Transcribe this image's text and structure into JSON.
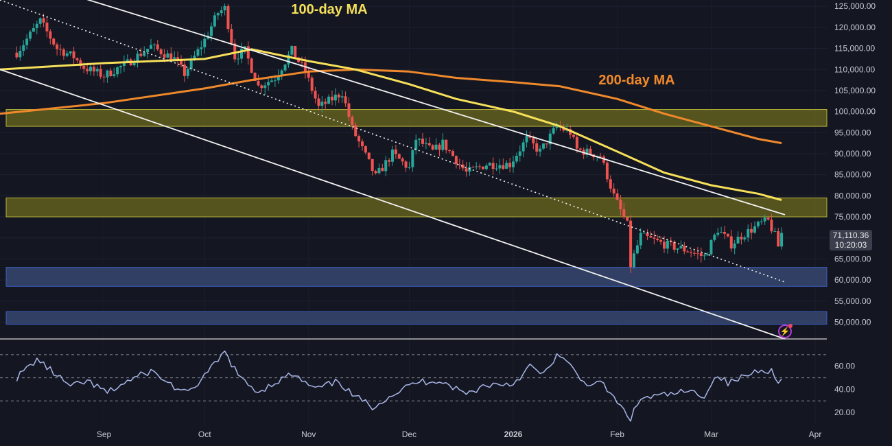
{
  "chart_data": {
    "type": "candlestick",
    "price_axis": {
      "ticks": [
        "125,000.00",
        "120,000.00",
        "115,000.00",
        "110,000.00",
        "105,000.00",
        "100,000.00",
        "95,000.00",
        "90,000.00",
        "85,000.00",
        "80,000.00",
        "75,000.00",
        "70,000.00",
        "65,000.00",
        "60,000.00",
        "55,000.00",
        "50,000.00"
      ],
      "range": [
        46000,
        126500
      ]
    },
    "time_axis": {
      "ticks": [
        "Sep",
        "Oct",
        "Nov",
        "Dec",
        "2026",
        "Feb",
        "Mar",
        "Apr"
      ],
      "tick_dates": [
        "2025-09-01",
        "2025-10-01",
        "2025-11-01",
        "2025-12-01",
        "2026-01-01",
        "2026-02-01",
        "2026-03-01",
        "2026-04-01"
      ]
    },
    "last_price": "71,110.36",
    "countdown": "10:20:03",
    "annotations": {
      "ma100_label": "100-day MA",
      "ma200_label": "200-day MA"
    },
    "price_anchors": [
      [
        "2025-08-06",
        114000
      ],
      [
        "2025-08-13",
        121500
      ],
      [
        "2025-08-18",
        115000
      ],
      [
        "2025-08-23",
        113000
      ],
      [
        "2025-08-26",
        110500
      ],
      [
        "2025-09-01",
        108500
      ],
      [
        "2025-09-08",
        111500
      ],
      [
        "2025-09-15",
        115500
      ],
      [
        "2025-09-22",
        112500
      ],
      [
        "2025-09-25",
        109000
      ],
      [
        "2025-10-01",
        117000
      ],
      [
        "2025-10-05",
        123500
      ],
      [
        "2025-10-07",
        124500
      ],
      [
        "2025-10-10",
        113000
      ],
      [
        "2025-10-13",
        114500
      ],
      [
        "2025-10-17",
        106000
      ],
      [
        "2025-10-22",
        108000
      ],
      [
        "2025-10-27",
        114500
      ],
      [
        "2025-10-31",
        109500
      ],
      [
        "2025-11-04",
        101000
      ],
      [
        "2025-11-11",
        104500
      ],
      [
        "2025-11-14",
        96000
      ],
      [
        "2025-11-21",
        84500
      ],
      [
        "2025-11-26",
        90000
      ],
      [
        "2025-12-01",
        86500
      ],
      [
        "2025-12-03",
        93500
      ],
      [
        "2025-12-08",
        90500
      ],
      [
        "2025-12-11",
        92500
      ],
      [
        "2025-12-18",
        85500
      ],
      [
        "2025-12-24",
        87500
      ],
      [
        "2025-12-31",
        87500
      ],
      [
        "2026-01-05",
        93500
      ],
      [
        "2026-01-09",
        90500
      ],
      [
        "2026-01-14",
        96500
      ],
      [
        "2026-01-18",
        95000
      ],
      [
        "2026-01-20",
        91000
      ],
      [
        "2026-01-27",
        89500
      ],
      [
        "2026-01-31",
        80000
      ],
      [
        "2026-02-04",
        73000
      ],
      [
        "2026-02-05",
        63500
      ],
      [
        "2026-02-08",
        70500
      ],
      [
        "2026-02-15",
        68500
      ],
      [
        "2026-02-22",
        67000
      ],
      [
        "2026-02-27",
        65500
      ],
      [
        "2026-03-03",
        72000
      ],
      [
        "2026-03-07",
        68500
      ],
      [
        "2026-03-10",
        70500
      ],
      [
        "2026-03-16",
        73500
      ],
      [
        "2026-03-18",
        74000
      ],
      [
        "2026-03-20",
        70500
      ],
      [
        "2026-03-21",
        68000
      ],
      [
        "2026-03-22",
        71110
      ]
    ],
    "ma100": [
      [
        "2025-08-01",
        110000
      ],
      [
        "2025-09-01",
        111500
      ],
      [
        "2025-10-01",
        112500
      ],
      [
        "2025-10-15",
        114800
      ],
      [
        "2025-11-01",
        112000
      ],
      [
        "2025-11-15",
        110000
      ],
      [
        "2025-12-01",
        106500
      ],
      [
        "2025-12-15",
        103000
      ],
      [
        "2026-01-01",
        100000
      ],
      [
        "2026-01-15",
        96500
      ],
      [
        "2026-02-01",
        90500
      ],
      [
        "2026-02-15",
        85500
      ],
      [
        "2026-03-01",
        82500
      ],
      [
        "2026-03-15",
        80500
      ],
      [
        "2026-03-22",
        79000
      ]
    ],
    "ma200": [
      [
        "2025-08-01",
        99500
      ],
      [
        "2025-09-01",
        102000
      ],
      [
        "2025-10-01",
        105500
      ],
      [
        "2025-10-15",
        107500
      ],
      [
        "2025-11-01",
        109500
      ],
      [
        "2025-11-15",
        110000
      ],
      [
        "2025-12-01",
        109500
      ],
      [
        "2025-12-15",
        108000
      ],
      [
        "2026-01-01",
        107000
      ],
      [
        "2026-01-15",
        106000
      ],
      [
        "2026-02-01",
        103000
      ],
      [
        "2026-02-15",
        99500
      ],
      [
        "2026-03-01",
        96500
      ],
      [
        "2026-03-15",
        93500
      ],
      [
        "2026-03-22",
        92500
      ]
    ],
    "zones": [
      {
        "low": 96500,
        "high": 100500,
        "kind": "resistance",
        "color": "#6b6a1e"
      },
      {
        "low": 75000,
        "high": 79500,
        "kind": "resistance",
        "color": "#6b6a1e"
      },
      {
        "low": 58500,
        "high": 63000,
        "kind": "support",
        "color": "#3a4e7a"
      },
      {
        "low": 49500,
        "high": 52500,
        "kind": "support",
        "color": "#3a4e7a"
      }
    ],
    "trendlines": [
      {
        "from": [
          "2025-08-01",
          133000
        ],
        "to": [
          "2026-03-23",
          75500
        ],
        "style": "solid"
      },
      {
        "from": [
          "2025-08-01",
          110000
        ],
        "to": [
          "2026-03-23",
          46000
        ],
        "style": "solid"
      },
      {
        "from": [
          "2025-08-01",
          126500
        ],
        "to": [
          "2026-03-23",
          59500
        ],
        "style": "dotted"
      }
    ],
    "rsi": {
      "axis_ticks": [
        "60.00",
        "40.00",
        "20.00"
      ],
      "range": [
        10,
        80
      ],
      "levels": [
        70,
        50,
        30
      ],
      "anchors": [
        [
          "2025-08-06",
          50
        ],
        [
          "2025-08-12",
          66
        ],
        [
          "2025-08-18",
          52
        ],
        [
          "2025-08-22",
          42
        ],
        [
          "2025-08-27",
          47
        ],
        [
          "2025-09-02",
          37
        ],
        [
          "2025-09-08",
          47
        ],
        [
          "2025-09-15",
          56
        ],
        [
          "2025-09-22",
          42
        ],
        [
          "2025-09-26",
          36
        ],
        [
          "2025-10-03",
          58
        ],
        [
          "2025-10-07",
          72
        ],
        [
          "2025-10-12",
          48
        ],
        [
          "2025-10-17",
          38
        ],
        [
          "2025-10-22",
          46
        ],
        [
          "2025-10-27",
          53
        ],
        [
          "2025-11-03",
          40
        ],
        [
          "2025-11-10",
          47
        ],
        [
          "2025-11-14",
          35
        ],
        [
          "2025-11-20",
          25
        ],
        [
          "2025-11-25",
          34
        ],
        [
          "2025-12-03",
          46
        ],
        [
          "2025-12-10",
          48
        ],
        [
          "2025-12-18",
          36
        ],
        [
          "2025-12-24",
          44
        ],
        [
          "2026-01-01",
          45
        ],
        [
          "2026-01-06",
          60
        ],
        [
          "2026-01-10",
          52
        ],
        [
          "2026-01-14",
          70
        ],
        [
          "2026-01-18",
          60
        ],
        [
          "2026-01-22",
          46
        ],
        [
          "2026-01-28",
          44
        ],
        [
          "2026-02-01",
          28
        ],
        [
          "2026-02-05",
          15
        ],
        [
          "2026-02-08",
          32
        ],
        [
          "2026-02-15",
          35
        ],
        [
          "2026-02-22",
          38
        ],
        [
          "2026-02-27",
          35
        ],
        [
          "2026-03-03",
          53
        ],
        [
          "2026-03-06",
          45
        ],
        [
          "2026-03-10",
          50
        ],
        [
          "2026-03-16",
          58
        ],
        [
          "2026-03-19",
          56
        ],
        [
          "2026-03-21",
          44
        ],
        [
          "2026-03-22",
          52
        ]
      ]
    }
  },
  "colors": {
    "background": "#141722",
    "bull": "#27a69a",
    "bear": "#ef5350",
    "ma100": "#f6e05a",
    "ma200": "#f0892b",
    "text": "#c9cbd2",
    "trendline": "#f2f2f2",
    "rsi_line": "#a9b6e8"
  },
  "icons": {
    "alert": "lightning-icon"
  }
}
